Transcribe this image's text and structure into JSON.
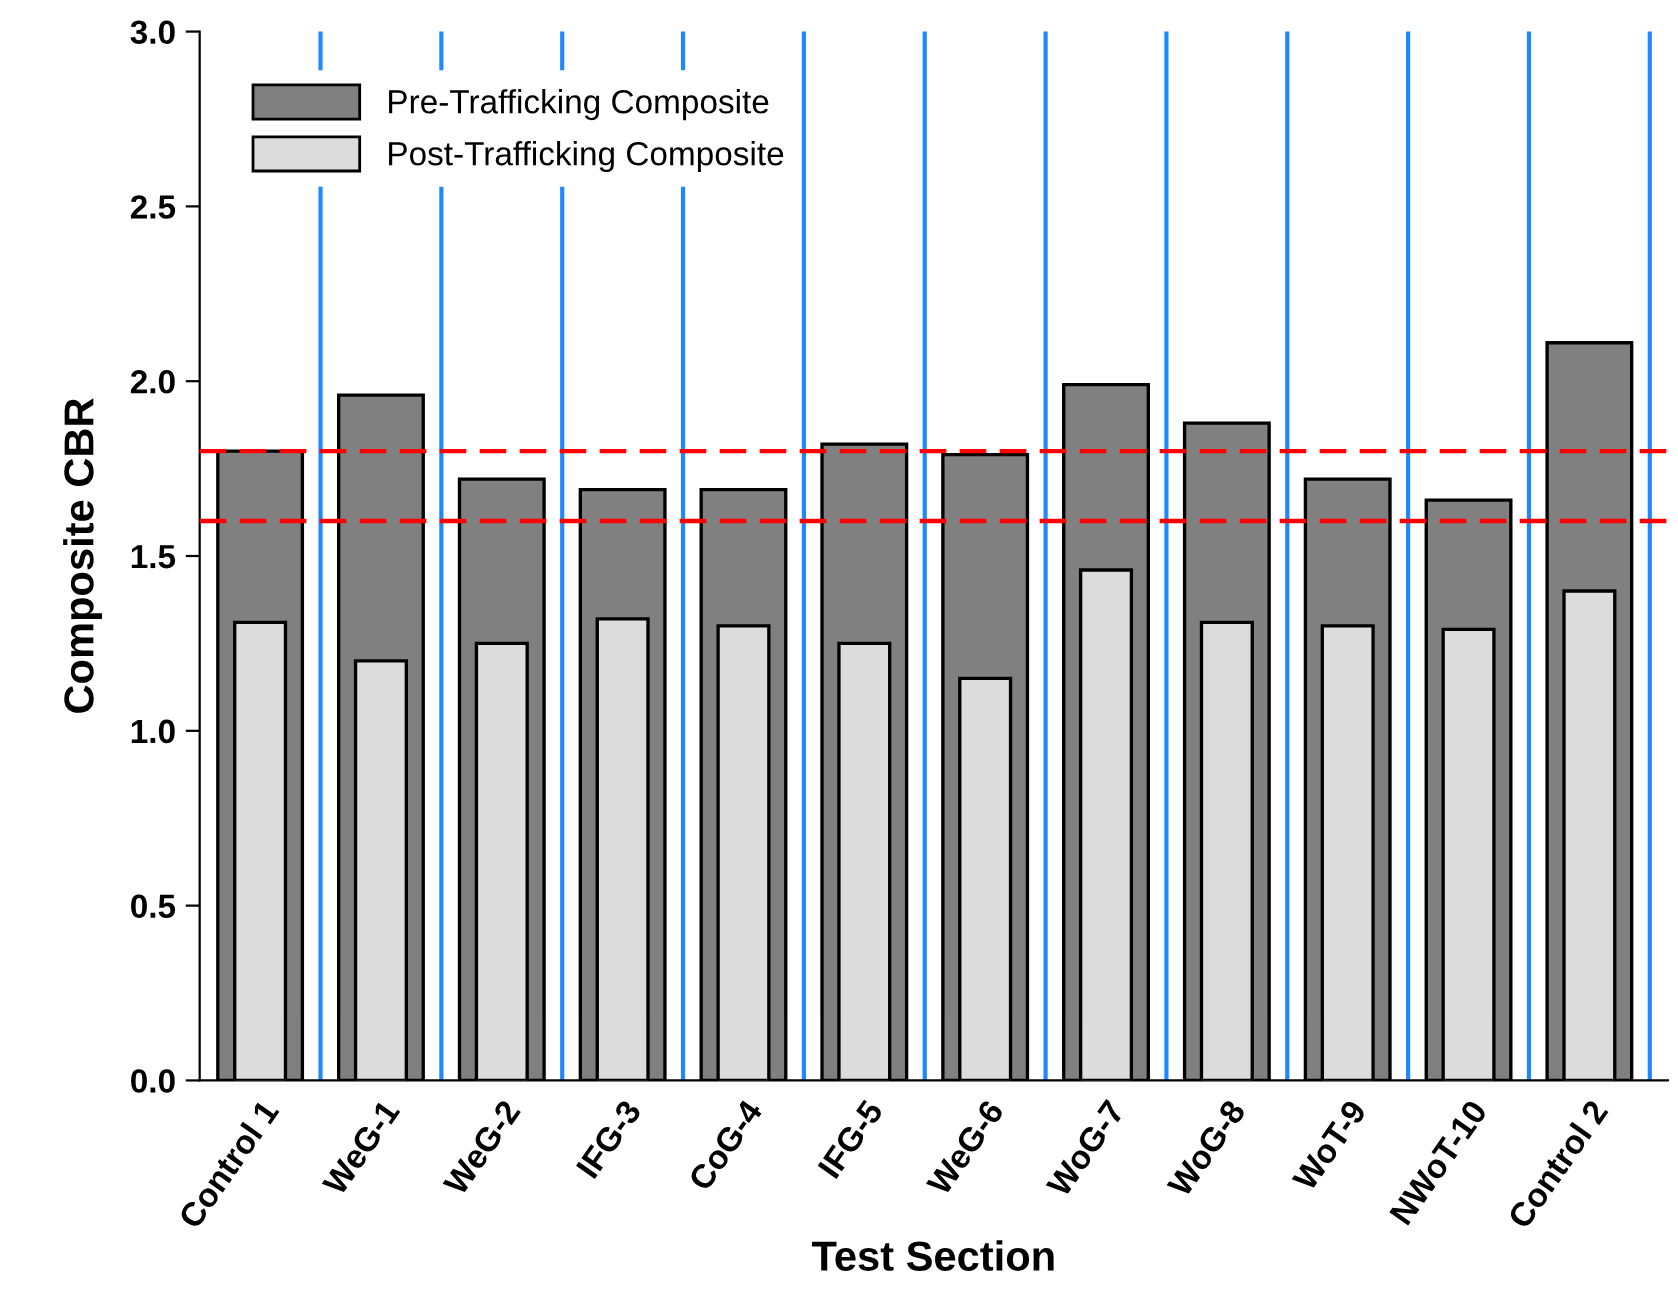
{
  "chart_data": {
    "type": "bar",
    "xlabel": "Test Section",
    "ylabel": "Composite CBR",
    "categories": [
      "Control 1",
      "WeG-1",
      "WeG-2",
      "IFG-3",
      "CoG-4",
      "IFG-5",
      "WeG-6",
      "WoG-7",
      "WoG-8",
      "WoT-9",
      "NWoT-10",
      "Control 2"
    ],
    "series": [
      {
        "name": "Pre-Trafficking Composite",
        "color": "#808080",
        "values": [
          1.8,
          1.96,
          1.72,
          1.69,
          1.69,
          1.82,
          1.79,
          1.99,
          1.88,
          1.72,
          1.66,
          2.11
        ]
      },
      {
        "name": "Post-Trafficking Composite",
        "color": "#dcdcdc",
        "values": [
          1.31,
          1.2,
          1.25,
          1.32,
          1.3,
          1.25,
          1.15,
          1.46,
          1.31,
          1.3,
          1.29,
          1.4
        ]
      }
    ],
    "ylim": [
      0,
      3.0
    ],
    "yticks": [
      {
        "value": 0,
        "label": "0.0"
      },
      {
        "value": 0.5,
        "label": "0.5"
      },
      {
        "value": 1.0,
        "label": "1.0"
      },
      {
        "value": 1.5,
        "label": "1.5"
      },
      {
        "value": 2.0,
        "label": "2.0"
      },
      {
        "value": 2.5,
        "label": "2.5"
      },
      {
        "value": 3.0,
        "label": "3.0"
      }
    ],
    "ref_lines": [
      {
        "axis": "y",
        "value": 1.8,
        "color": "#ff0000",
        "line_style": "dashed"
      },
      {
        "axis": "y",
        "value": 1.6,
        "color": "#ff0000",
        "line_style": "dashed"
      }
    ],
    "grid": "x",
    "legend": "top left"
  }
}
